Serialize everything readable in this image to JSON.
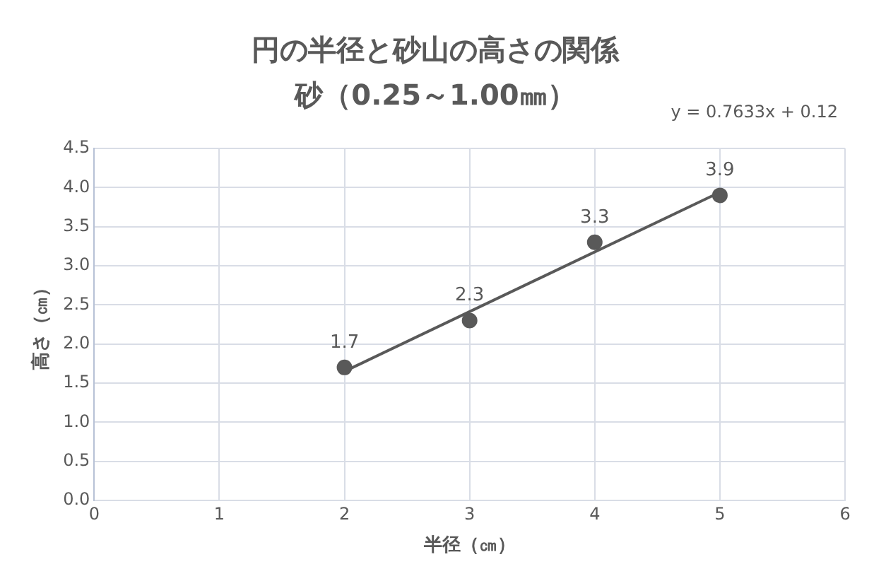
{
  "chart_data": {
    "type": "scatter",
    "title": "円の半径と砂山の高さの関係",
    "subtitle": "砂（0.25～1.00㎜）",
    "xlabel": "半径（㎝）",
    "ylabel": "高さ（㎝）",
    "annotations": [
      "y = 0.7633x + 0.12"
    ],
    "series": [
      {
        "x": [
          2,
          3,
          4,
          5
        ],
        "values": [
          1.7,
          2.3,
          3.3,
          3.9
        ],
        "value_labels": [
          "1.7",
          "2.3",
          "3.3",
          "3.9"
        ],
        "color": "#595959",
        "marker": "circle"
      },
      {
        "type": "line",
        "x": [
          2,
          5
        ],
        "values": [
          1.65,
          3.94
        ],
        "color": "#595959",
        "marker": "none",
        "line_style": "solid"
      }
    ],
    "xlim": [
      0,
      6
    ],
    "xticks": [
      0,
      1,
      2,
      3,
      4,
      5,
      6
    ],
    "ylim": [
      0,
      4.5
    ],
    "yticks": [
      {
        "value": 0,
        "label": "0.0"
      },
      {
        "value": 0.5,
        "label": "0.5"
      },
      {
        "value": 1,
        "label": "1.0"
      },
      {
        "value": 1.5,
        "label": "1.5"
      },
      {
        "value": 2,
        "label": "2.0"
      },
      {
        "value": 2.5,
        "label": "2.5"
      },
      {
        "value": 3,
        "label": "3.0"
      },
      {
        "value": 3.5,
        "label": "3.5"
      },
      {
        "value": 4,
        "label": "4.0"
      },
      {
        "value": 4.5,
        "label": "4.5"
      }
    ],
    "grid": true,
    "legend": false
  }
}
